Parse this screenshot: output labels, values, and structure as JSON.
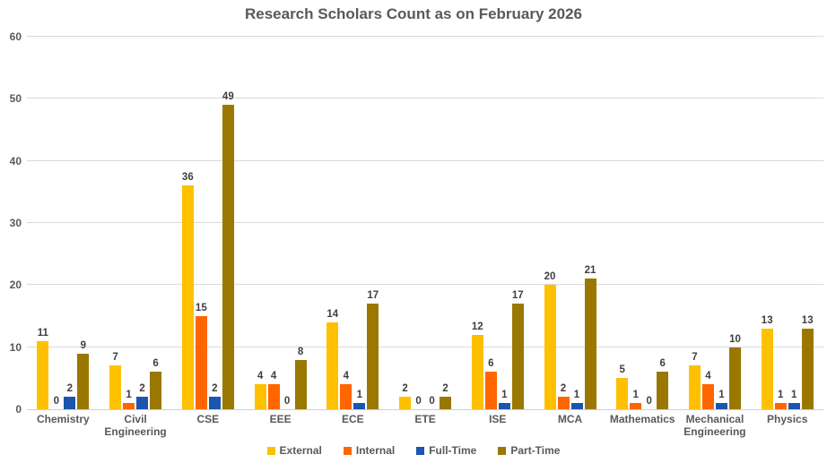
{
  "chart_data": {
    "type": "bar",
    "title": "Research Scholars Count as on February 2026",
    "categories": [
      "Chemistry",
      "Civil Engineering",
      "CSE",
      "EEE",
      "ECE",
      "ETE",
      "ISE",
      "MCA",
      "Mathematics",
      "Mechanical Engineering",
      "Physics"
    ],
    "series": [
      {
        "name": "External",
        "color": "#FFC000",
        "values": [
          11,
          7,
          36,
          4,
          14,
          2,
          12,
          20,
          5,
          7,
          13
        ]
      },
      {
        "name": "Internal",
        "color": "#FF6600",
        "values": [
          0,
          1,
          15,
          4,
          4,
          0,
          6,
          2,
          1,
          4,
          1
        ]
      },
      {
        "name": "Full-Time",
        "color": "#1C55B0",
        "values": [
          2,
          2,
          2,
          0,
          1,
          0,
          1,
          1,
          0,
          1,
          1
        ]
      },
      {
        "name": "Part-Time",
        "color": "#9A7800",
        "values": [
          9,
          6,
          49,
          8,
          17,
          2,
          17,
          21,
          6,
          10,
          13
        ]
      }
    ],
    "ylim": [
      0,
      60
    ],
    "yticks": [
      0,
      10,
      20,
      30,
      40,
      50,
      60
    ],
    "grid": true,
    "legend_position": "bottom",
    "data_labels": true,
    "colors": {
      "title_text": "#595959",
      "axis_text": "#595959",
      "data_label_text": "#3F3F3F",
      "gridline": "#DADADA",
      "background": "#FFFFFF"
    }
  }
}
